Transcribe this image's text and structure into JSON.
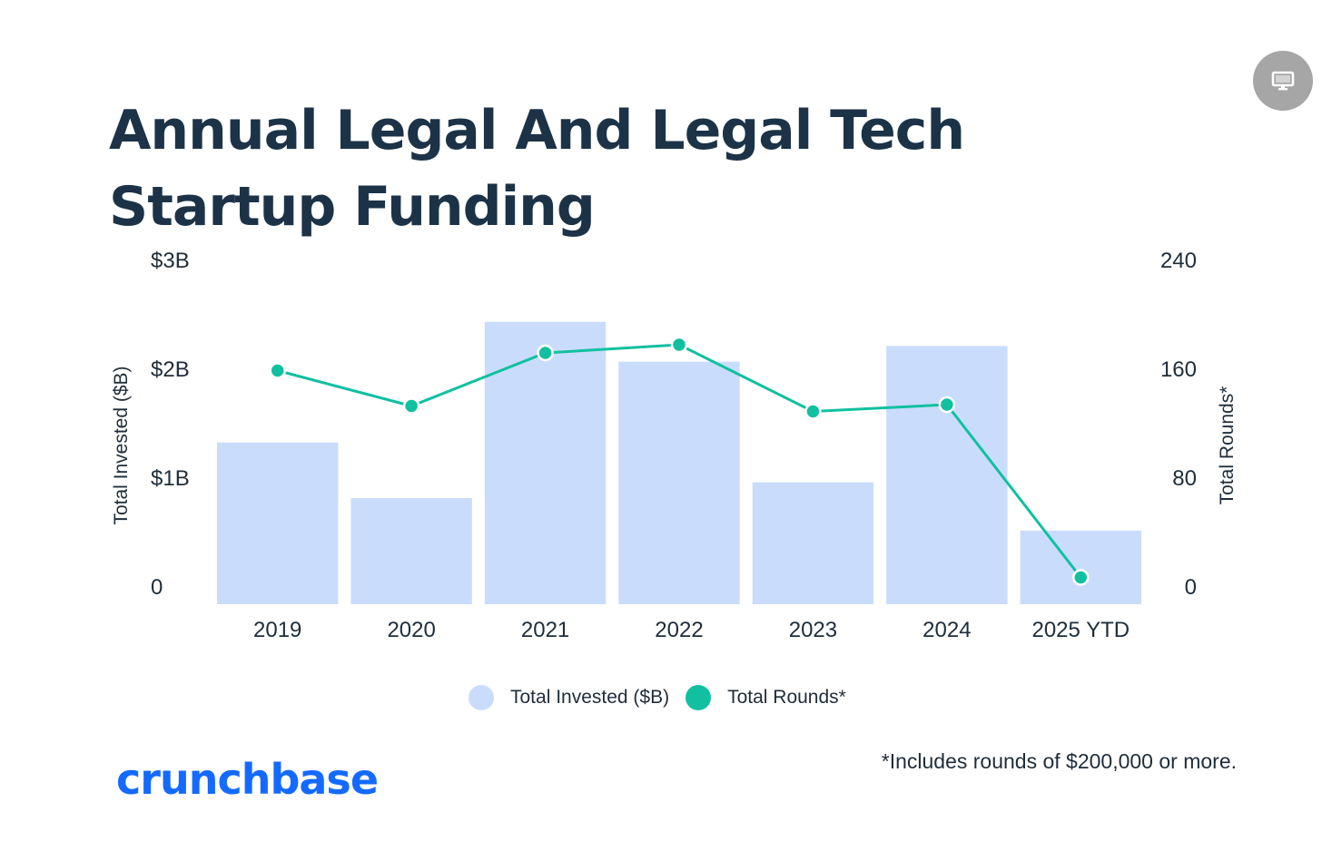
{
  "colors": {
    "bar": "#cadcfc",
    "line": "#10c0a0",
    "title": "#1c3347",
    "brand": "#146aff"
  },
  "screen_button": {
    "icon": "monitor-icon"
  },
  "title": "Annual Legal And Legal Tech Startup Funding",
  "chart_data": {
    "type": "bar",
    "categories": [
      "2019",
      "2020",
      "2021",
      "2022",
      "2023",
      "2024",
      "2025 YTD"
    ],
    "series": [
      {
        "name": "Total Invested ($B)",
        "type": "bar",
        "axis": "left",
        "values": [
          1.34,
          0.88,
          2.34,
          2.01,
          1.01,
          2.14,
          0.61
        ]
      },
      {
        "name": "Total Rounds*",
        "type": "line",
        "axis": "right",
        "values": [
          159,
          133,
          172,
          178,
          129,
          134,
          7
        ]
      }
    ],
    "y_left": {
      "label": "Total Invested ($B)",
      "range": [
        0,
        3
      ],
      "ticks": [
        {
          "value": 0,
          "label": "0"
        },
        {
          "value": 1,
          "label": "$1B"
        },
        {
          "value": 2,
          "label": "$2B"
        },
        {
          "value": 3,
          "label": "$3B"
        }
      ]
    },
    "y_right": {
      "label": "Total Rounds*",
      "range": [
        0,
        240
      ],
      "ticks": [
        {
          "value": 0,
          "label": "0"
        },
        {
          "value": 80,
          "label": "80"
        },
        {
          "value": 160,
          "label": "160"
        },
        {
          "value": 240,
          "label": "240"
        }
      ]
    },
    "grid": false,
    "legend": "bottom-center"
  },
  "legend": [
    {
      "label": "Total Invested ($B)"
    },
    {
      "label": "Total Rounds*"
    }
  ],
  "footnote": "*Includes rounds of $200,000 or more.",
  "brand": "crunchbase"
}
